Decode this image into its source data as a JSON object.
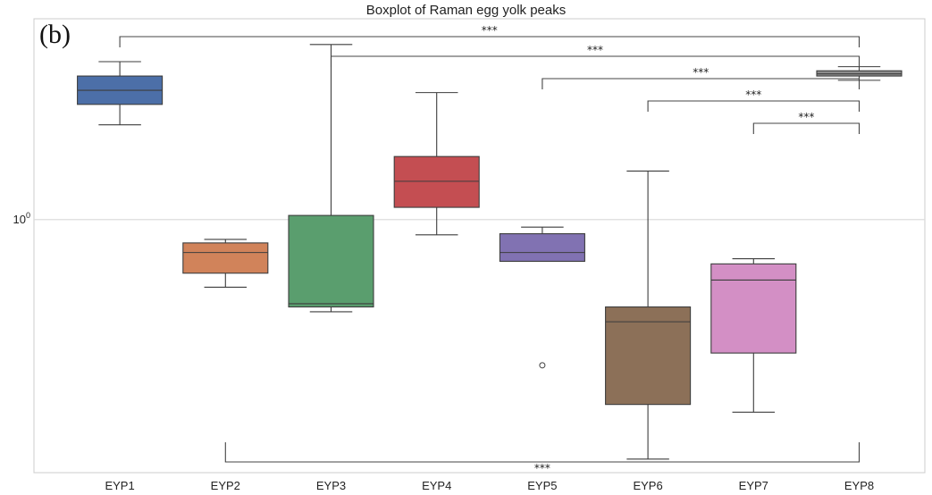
{
  "panel_label": "(b)",
  "chart_data": {
    "type": "box",
    "title": "Boxplot of Raman egg yolk peaks",
    "xlabel": "",
    "ylabel": "",
    "yscale": "log",
    "ylim": [
      0.3,
      2.6
    ],
    "yticks": [
      {
        "value": 1.0,
        "base": "10",
        "exp": "0"
      }
    ],
    "grid": "horizontal",
    "categories": [
      "EYP1",
      "EYP2",
      "EYP3",
      "EYP4",
      "EYP5",
      "EYP6",
      "EYP7",
      "EYP8"
    ],
    "colors": [
      "#4c6fa8",
      "#d1835a",
      "#5a9e6e",
      "#c44e52",
      "#8172b2",
      "#8c7058",
      "#d38fc5",
      "#8c8c8c"
    ],
    "boxes": [
      {
        "category": "EYP1",
        "whisker_low": 1.57,
        "q1": 1.73,
        "median": 1.85,
        "q3": 1.98,
        "whisker_high": 2.12,
        "outliers": []
      },
      {
        "category": "EYP2",
        "whisker_low": 0.725,
        "q1": 0.775,
        "median": 0.855,
        "q3": 0.895,
        "whisker_high": 0.91,
        "outliers": []
      },
      {
        "category": "EYP3",
        "whisker_low": 0.645,
        "q1": 0.66,
        "median": 0.67,
        "q3": 1.02,
        "whisker_high": 2.3,
        "outliers": []
      },
      {
        "category": "EYP4",
        "whisker_low": 0.93,
        "q1": 1.06,
        "median": 1.2,
        "q3": 1.35,
        "whisker_high": 1.83,
        "outliers": []
      },
      {
        "category": "EYP5",
        "whisker_low": 0.82,
        "q1": 0.82,
        "median": 0.855,
        "q3": 0.935,
        "whisker_high": 0.965,
        "outliers": [
          0.5
        ]
      },
      {
        "category": "EYP6",
        "whisker_low": 0.32,
        "q1": 0.415,
        "median": 0.615,
        "q3": 0.66,
        "whisker_high": 1.26,
        "outliers": []
      },
      {
        "category": "EYP7",
        "whisker_low": 0.4,
        "q1": 0.53,
        "median": 0.75,
        "q3": 0.81,
        "whisker_high": 0.83,
        "outliers": []
      },
      {
        "category": "EYP8",
        "whisker_low": 1.94,
        "q1": 1.98,
        "median": 2.0,
        "q3": 2.03,
        "whisker_high": 2.07,
        "outliers": []
      }
    ],
    "significance": [
      {
        "from": "EYP1",
        "to": "EYP8",
        "label": "***",
        "position": "top"
      },
      {
        "from": "EYP3",
        "to": "EYP8",
        "label": "***",
        "position": "top"
      },
      {
        "from": "EYP5",
        "to": "EYP8",
        "label": "***",
        "position": "top"
      },
      {
        "from": "EYP6",
        "to": "EYP8",
        "label": "***",
        "position": "top"
      },
      {
        "from": "EYP7",
        "to": "EYP8",
        "label": "***",
        "position": "top"
      },
      {
        "from": "EYP2",
        "to": "EYP8",
        "label": "***",
        "position": "bottom"
      }
    ]
  }
}
